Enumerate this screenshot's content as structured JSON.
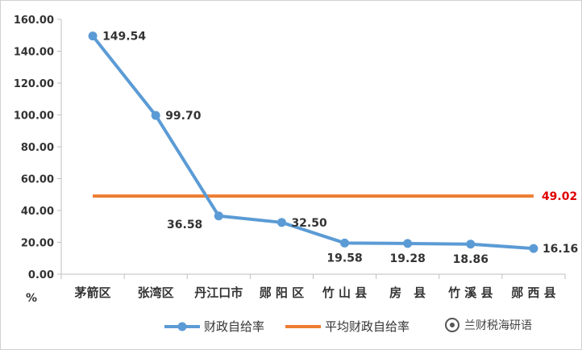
{
  "chart_data": {
    "type": "line",
    "categories": [
      "茅箭区",
      "张湾区",
      "丹江口市",
      "郧 阳 区",
      "竹 山 县",
      "房　县",
      "竹 溪 县",
      "郧 西 县"
    ],
    "series": [
      {
        "name": "财政自给率",
        "values": [
          149.54,
          99.7,
          36.58,
          32.5,
          19.58,
          19.28,
          18.86,
          16.16
        ],
        "labels": [
          "149.54",
          "99.70",
          "36.58",
          "32.50",
          "19.58",
          "19.28",
          "18.86",
          "16.16"
        ],
        "color": "#5b9bd5"
      },
      {
        "name": "平均财政自给率",
        "values": [
          49.02,
          49.02,
          49.02,
          49.02,
          49.02,
          49.02,
          49.02,
          49.02
        ],
        "end_label": "49.02",
        "color": "#ed7d31",
        "label_color": "#e00000"
      }
    ],
    "yticks": [
      "0.00",
      "20.00",
      "40.00",
      "60.00",
      "80.00",
      "100.00",
      "120.00",
      "140.00",
      "160.00"
    ],
    "ylim": [
      0,
      160
    ],
    "yunit": "%",
    "grid": false,
    "legend_position": "bottom-left"
  },
  "watermark": {
    "text": "兰财税海研语",
    "icon": "wechat-icon"
  }
}
